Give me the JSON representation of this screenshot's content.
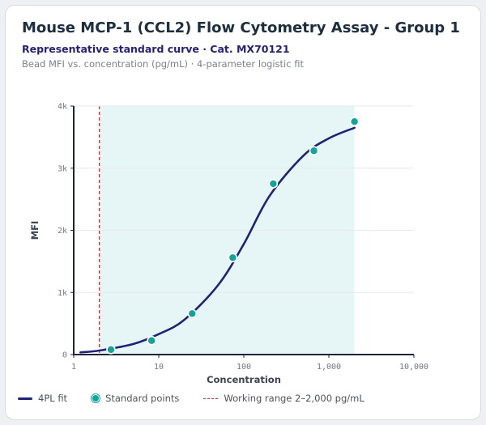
{
  "header": {
    "title": "Mouse MCP-1 (CCL2) Flow Cytometry Assay - Group 1",
    "subtitle": "Representative standard curve · Cat. MX70121",
    "caption": "Bead MFI vs. concentration (pg/mL) · 4-parameter logistic fit"
  },
  "chart_data": {
    "type": "scatter",
    "xscale": "log",
    "xlabel": "Concentration",
    "ylabel": "MFI",
    "xlim": [
      1,
      10000
    ],
    "ylim": [
      0,
      4000
    ],
    "xticks": [
      1,
      10,
      100,
      1000,
      10000
    ],
    "xtick_labels": [
      "1",
      "10",
      "100",
      "1,000",
      "10,000"
    ],
    "yticks": [
      0,
      1000,
      2000,
      3000,
      4000
    ],
    "ytick_labels": [
      "0",
      "1k",
      "2k",
      "3k",
      "4k"
    ],
    "grid": true,
    "legend_position": "bottom-left",
    "series": [
      {
        "name": "Standard points",
        "kind": "scatter",
        "color": "#12a39a",
        "x": [
          2.74,
          8.23,
          24.7,
          74.1,
          222,
          667,
          2000
        ],
        "y": [
          80,
          225,
          660,
          1560,
          2750,
          3280,
          3750
        ]
      },
      {
        "name": "4PL fit",
        "kind": "line",
        "color": "#1f2378",
        "x": [
          1.2,
          2,
          5,
          10,
          20,
          50,
          100,
          200,
          500,
          1000,
          2000
        ],
        "y": [
          35,
          65,
          170,
          330,
          560,
          1120,
          1780,
          2550,
          3200,
          3480,
          3650
        ]
      }
    ],
    "working_range": {
      "label": "Working range 2–2,000 pg/mL",
      "from": 2,
      "to": 2000,
      "line_color": "#c0392b",
      "fill_color": "#e6f6f6"
    }
  }
}
